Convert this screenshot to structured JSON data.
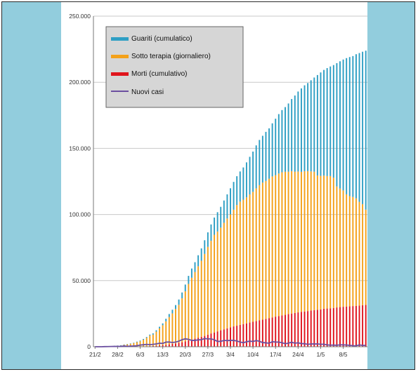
{
  "colors": {
    "frame_side": "#92cddd",
    "grid": "#c8c8c8",
    "guariti": "#2f9fc4",
    "sotto_terapia": "#f4a11a",
    "morti": "#e0141c",
    "nuovi_casi": "#6b4fa0",
    "legend_bg": "#d6d6d6"
  },
  "chart_data": {
    "type": "bar",
    "stacked": true,
    "ylim": [
      0,
      250000
    ],
    "y_ticks": [
      0,
      50000,
      100000,
      150000,
      200000,
      250000
    ],
    "y_tick_labels": [
      "0",
      "50.000",
      "100.000",
      "150.000",
      "200.000",
      "250.000"
    ],
    "x_tick_labels": [
      "21/2",
      "28/2",
      "6/3",
      "13/3",
      "20/3",
      "27/3",
      "3/4",
      "10/4",
      "17/4",
      "24/4",
      "1/5",
      "8/5"
    ],
    "grid": "horizontal",
    "legend_position": "top-left",
    "legend": [
      "Guariti (cumulatico)",
      "Sotto terapia (giornaliero)",
      "Morti (cumulativo)",
      "Nuovi casi"
    ],
    "categories": [
      "21/2",
      "22/2",
      "23/2",
      "24/2",
      "25/2",
      "26/2",
      "27/2",
      "28/2",
      "29/2",
      "1/3",
      "2/3",
      "3/3",
      "4/3",
      "5/3",
      "6/3",
      "7/3",
      "8/3",
      "9/3",
      "10/3",
      "11/3",
      "12/3",
      "13/3",
      "14/3",
      "15/3",
      "16/3",
      "17/3",
      "18/3",
      "19/3",
      "20/3",
      "21/3",
      "22/3",
      "23/3",
      "24/3",
      "25/3",
      "26/3",
      "27/3",
      "28/3",
      "29/3",
      "30/3",
      "31/3",
      "1/4",
      "2/4",
      "3/4",
      "4/4",
      "5/4",
      "6/4",
      "7/4",
      "8/4",
      "9/4",
      "10/4",
      "11/4",
      "12/4",
      "13/4",
      "14/4",
      "15/4",
      "16/4",
      "17/4",
      "18/4",
      "19/4",
      "20/4",
      "21/4",
      "22/4",
      "23/4",
      "24/4",
      "25/4",
      "26/4",
      "27/4",
      "28/4",
      "29/4",
      "30/4",
      "1/5",
      "2/5",
      "3/5",
      "4/5",
      "5/5",
      "6/5",
      "7/5",
      "8/5",
      "9/5",
      "10/5",
      "11/5",
      "12/5",
      "13/5",
      "14/5",
      "15/5"
    ],
    "series": [
      {
        "name": "Morti (cumulativo)",
        "values": [
          1,
          2,
          3,
          7,
          10,
          12,
          17,
          21,
          29,
          34,
          52,
          79,
          107,
          148,
          197,
          233,
          366,
          463,
          631,
          827,
          1016,
          1266,
          1441,
          1809,
          2158,
          2503,
          2978,
          3405,
          4032,
          4825,
          5476,
          6077,
          6820,
          7503,
          8165,
          9134,
          10023,
          10779,
          11591,
          12428,
          13155,
          13915,
          14681,
          15362,
          15887,
          16523,
          17127,
          17669,
          18279,
          18849,
          19468,
          19899,
          20465,
          21067,
          21645,
          22170,
          22745,
          23227,
          23660,
          24114,
          24648,
          25085,
          25549,
          25969,
          26384,
          26644,
          26977,
          27359,
          27682,
          27967,
          28236,
          28710,
          28884,
          29079,
          29315,
          29684,
          29958,
          30201,
          30395,
          30560,
          30739,
          30911,
          31106,
          31368,
          31610
        ]
      },
      {
        "name": "Sotto terapia (giornaliero)",
        "values": [
          19,
          31,
          145,
          212,
          311,
          385,
          588,
          821,
          1049,
          1577,
          1835,
          2263,
          2706,
          3296,
          3916,
          5061,
          6387,
          7985,
          8514,
          10590,
          12839,
          14955,
          17750,
          20603,
          23073,
          26062,
          28710,
          33190,
          37860,
          42681,
          46638,
          50418,
          54030,
          57521,
          62013,
          66414,
          70065,
          73880,
          75528,
          77635,
          80572,
          83049,
          85388,
          88274,
          91246,
          93187,
          94067,
          95262,
          96877,
          98273,
          100269,
          102253,
          103616,
          104291,
          105418,
          106607,
          106962,
          107771,
          108257,
          108237,
          107709,
          107699,
          106848,
          106527,
          105847,
          106103,
          105813,
          105205,
          104657,
          101551,
          100943,
          100704,
          100179,
          99980,
          98467,
          91528,
          89624,
          87961,
          84842,
          83324,
          82488,
          81266,
          78457,
          76440,
          72070
        ]
      },
      {
        "name": "Guariti (cumulatico)",
        "values": [
          0,
          1,
          1,
          1,
          3,
          45,
          46,
          46,
          50,
          83,
          149,
          160,
          276,
          414,
          523,
          589,
          622,
          724,
          1004,
          1045,
          1258,
          1439,
          1966,
          2335,
          2749,
          2941,
          4025,
          4440,
          5129,
          6072,
          7024,
          7432,
          8326,
          9362,
          10361,
          10950,
          12384,
          13030,
          14620,
          15729,
          16847,
          18278,
          19758,
          20996,
          21815,
          22837,
          24392,
          26491,
          28470,
          30455,
          32534,
          34211,
          35435,
          37130,
          38092,
          40164,
          42727,
          44927,
          47055,
          48877,
          51600,
          54543,
          57576,
          60498,
          63120,
          64928,
          66624,
          68941,
          71252,
          75945,
          78249,
          79914,
          81654,
          82879,
          85231,
          93245,
          96276,
          99023,
          103031,
          105186,
          106587,
          109039,
          112541,
          115288,
          120205
        ]
      }
    ],
    "line_series": {
      "name": "Nuovi casi",
      "values": [
        0,
        0,
        0,
        100,
        150,
        200,
        250,
        240,
        240,
        560,
        350,
        470,
        590,
        780,
        1250,
        1500,
        1800,
        1600,
        1800,
        2100,
        2650,
        2500,
        3500,
        3600,
        3200,
        3500,
        4200,
        5300,
        6000,
        5600,
        4800,
        4800,
        5200,
        5300,
        6200,
        5900,
        5950,
        5200,
        4000,
        4050,
        4780,
        4600,
        4800,
        4800,
        4300,
        3600,
        3040,
        3800,
        4200,
        3950,
        4700,
        4100,
        3150,
        2950,
        2650,
        3800,
        3500,
        3500,
        3050,
        2250,
        2700,
        3400,
        2650,
        3000,
        2350,
        2300,
        1800,
        2100,
        2100,
        2100,
        1870,
        1900,
        1400,
        1200,
        1220,
        1100,
        1450,
        1400,
        1300,
        1050,
        800,
        750,
        1400,
        1000,
        950
      ]
    }
  },
  "legend": {
    "guariti": "Guariti (cumulatico)",
    "sotto_terapia": "Sotto terapia (giornaliero)",
    "morti": "Morti (cumulativo)",
    "nuovi_casi": "Nuovi casi"
  }
}
